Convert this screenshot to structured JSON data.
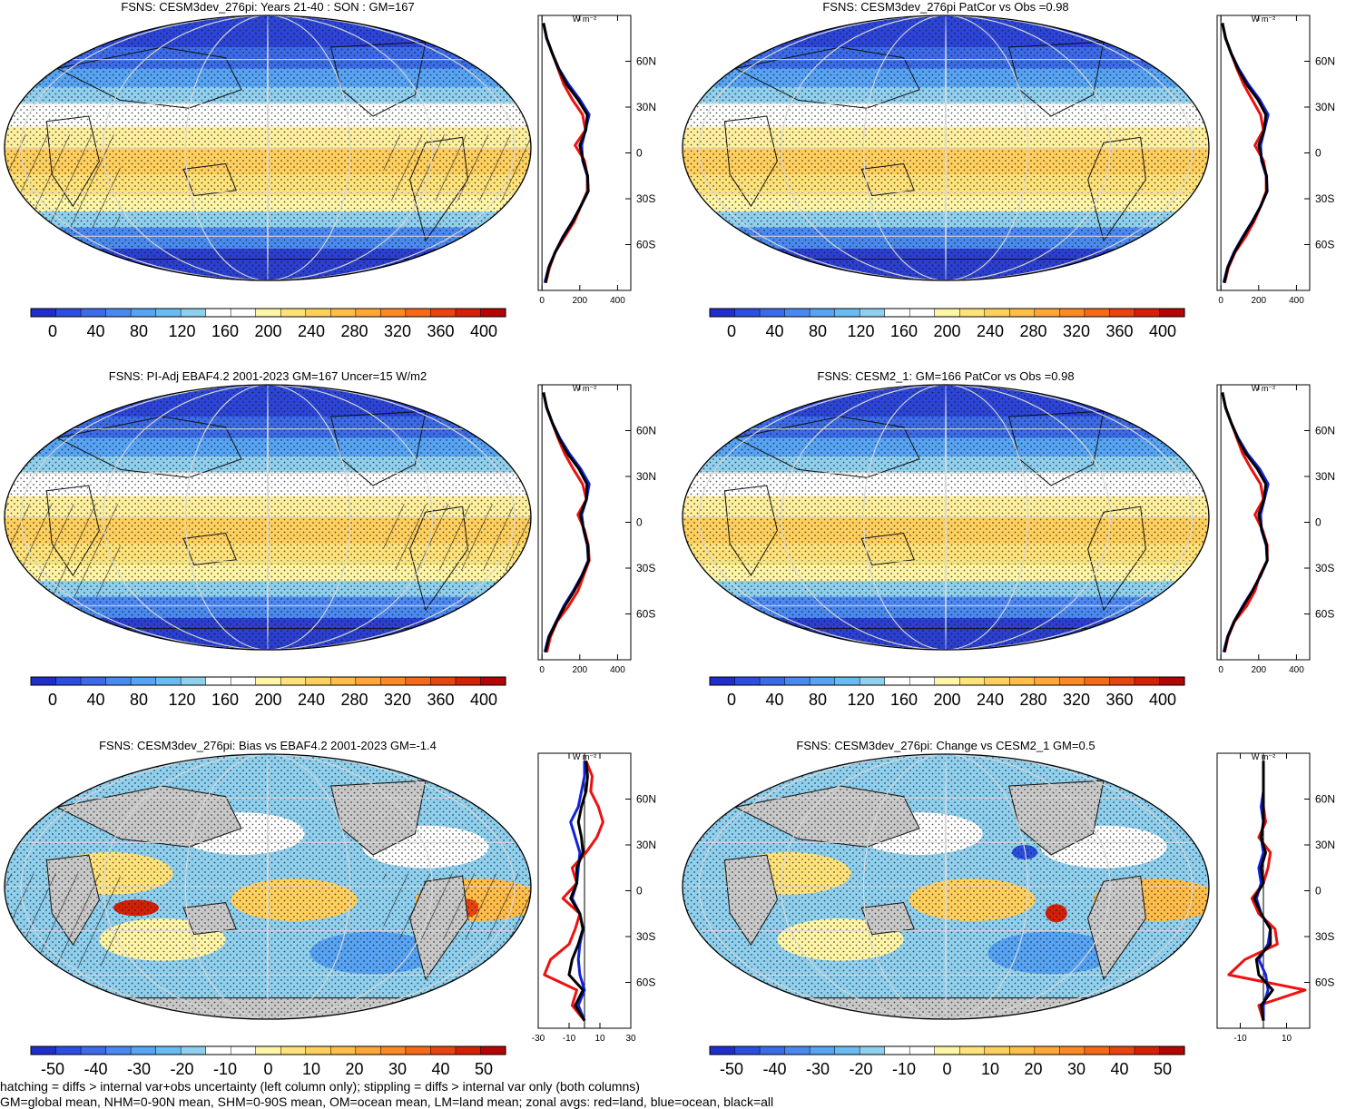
{
  "panels": [
    {
      "title": "FSNS: CESM3dev_276pi: Years 21-40 : SON : GM=167",
      "colorbar_labels": [
        "0",
        "40",
        "80",
        "120",
        "160",
        "200",
        "240",
        "280",
        "320",
        "360",
        "400"
      ],
      "colors": [
        "#1f2ecb",
        "#2b4ee0",
        "#3c6be8",
        "#4a8af0",
        "#57a4f4",
        "#69bcf2",
        "#8fd0ee",
        "#ffffff",
        "#ffffff",
        "#fff5a6",
        "#ffe37a",
        "#ffd05e",
        "#ffbd4a",
        "#ffa638",
        "#fb8a26",
        "#f46a18",
        "#e84410",
        "#d52008",
        "#b40404"
      ],
      "profile_unit": "W m⁻²",
      "profile_ticks": [
        "0",
        "200",
        "400"
      ],
      "lat_ticks": [
        "60N",
        "30N",
        "0",
        "30S",
        "60S"
      ],
      "hatched": true
    },
    {
      "title": "FSNS: CESM3dev_276pi PatCor vs Obs =0.98",
      "colorbar_labels": [
        "0",
        "40",
        "80",
        "120",
        "160",
        "200",
        "240",
        "280",
        "320",
        "360",
        "400"
      ],
      "colors": [
        "#1f2ecb",
        "#2b4ee0",
        "#3c6be8",
        "#4a8af0",
        "#57a4f4",
        "#69bcf2",
        "#8fd0ee",
        "#ffffff",
        "#ffffff",
        "#fff5a6",
        "#ffe37a",
        "#ffd05e",
        "#ffbd4a",
        "#ffa638",
        "#fb8a26",
        "#f46a18",
        "#e84410",
        "#d52008",
        "#b40404"
      ],
      "profile_unit": "W m⁻²",
      "profile_ticks": [
        "0",
        "200",
        "400"
      ],
      "lat_ticks": [
        "60N",
        "30N",
        "0",
        "30S",
        "60S"
      ],
      "hatched": false
    },
    {
      "title": "FSNS: PI-Adj EBAF4.2 2001-2023 GM=167 Uncer=15 W/m2",
      "colorbar_labels": [
        "0",
        "40",
        "80",
        "120",
        "160",
        "200",
        "240",
        "280",
        "320",
        "360",
        "400"
      ],
      "colors": [
        "#1f2ecb",
        "#2b4ee0",
        "#3c6be8",
        "#4a8af0",
        "#57a4f4",
        "#69bcf2",
        "#8fd0ee",
        "#ffffff",
        "#ffffff",
        "#fff5a6",
        "#ffe37a",
        "#ffd05e",
        "#ffbd4a",
        "#ffa638",
        "#fb8a26",
        "#f46a18",
        "#e84410",
        "#d52008",
        "#b40404"
      ],
      "profile_unit": "W m⁻²",
      "profile_ticks": [
        "0",
        "200",
        "400"
      ],
      "lat_ticks": [
        "60N",
        "30N",
        "0",
        "30S",
        "60S"
      ],
      "hatched": true
    },
    {
      "title": "FSNS: CESM2_1: GM=166 PatCor vs Obs =0.98",
      "colorbar_labels": [
        "0",
        "40",
        "80",
        "120",
        "160",
        "200",
        "240",
        "280",
        "320",
        "360",
        "400"
      ],
      "colors": [
        "#1f2ecb",
        "#2b4ee0",
        "#3c6be8",
        "#4a8af0",
        "#57a4f4",
        "#69bcf2",
        "#8fd0ee",
        "#ffffff",
        "#ffffff",
        "#fff5a6",
        "#ffe37a",
        "#ffd05e",
        "#ffbd4a",
        "#ffa638",
        "#fb8a26",
        "#f46a18",
        "#e84410",
        "#d52008",
        "#b40404"
      ],
      "profile_unit": "W m⁻²",
      "profile_ticks": [
        "0",
        "200",
        "400"
      ],
      "lat_ticks": [
        "60N",
        "30N",
        "0",
        "30S",
        "60S"
      ],
      "hatched": false
    },
    {
      "title": "FSNS: CESM3dev_276pi: Bias vs EBAF4.2 2001-2023  GM=-1.4",
      "colorbar_labels": [
        "-50",
        "-40",
        "-30",
        "-20",
        "-10",
        "0",
        "10",
        "20",
        "30",
        "40",
        "50"
      ],
      "colors": [
        "#1f2ecb",
        "#2b4ee0",
        "#3c6be8",
        "#4a8af0",
        "#57a4f4",
        "#69bcf2",
        "#8fd0ee",
        "#ffffff",
        "#ffffff",
        "#fff5a6",
        "#ffe37a",
        "#ffd05e",
        "#ffbd4a",
        "#ffa638",
        "#fb8a26",
        "#f46a18",
        "#e84410",
        "#d52008",
        "#b40404"
      ],
      "profile_unit": "W m⁻²",
      "profile_ticks": [
        "-30",
        "-10",
        "10",
        "30"
      ],
      "lat_ticks": [
        "60N",
        "30N",
        "0",
        "30S",
        "60S"
      ],
      "hatched": true
    },
    {
      "title": "FSNS: CESM3dev_276pi: Change vs CESM2_1 GM=0.5",
      "colorbar_labels": [
        "-50",
        "-40",
        "-30",
        "-20",
        "-10",
        "0",
        "10",
        "20",
        "30",
        "40",
        "50"
      ],
      "colors": [
        "#1f2ecb",
        "#2b4ee0",
        "#3c6be8",
        "#4a8af0",
        "#57a4f4",
        "#69bcf2",
        "#8fd0ee",
        "#ffffff",
        "#ffffff",
        "#fff5a6",
        "#ffe37a",
        "#ffd05e",
        "#ffbd4a",
        "#ffa638",
        "#fb8a26",
        "#f46a18",
        "#e84410",
        "#d52008",
        "#b40404"
      ],
      "profile_unit": "W m⁻²",
      "profile_ticks": [
        "-10",
        "10"
      ],
      "lat_ticks": [
        "60N",
        "30N",
        "0",
        "30S",
        "60S"
      ],
      "hatched": false
    }
  ],
  "caption": {
    "line1": "hatching = diffs > internal var+obs uncertainty (left column only); stippling = diffs > internal var only (both columns)",
    "line2": "GM=global mean, NHM=0-90N mean, SHM=0-90S mean, OM=ocean mean, LM=land mean; zonal avgs: red=land, blue=ocean, black=all"
  },
  "chart_data": [
    {
      "type": "heatmap",
      "title": "FSNS: CESM3dev_276pi: Years 21-40 : SON : GM=167",
      "colorbar_ticks": [
        0,
        40,
        80,
        120,
        160,
        200,
        240,
        280,
        320,
        360,
        400
      ],
      "zonal_profile": {
        "y_ticks": [
          "60N",
          "30N",
          "0",
          "30S",
          "60S"
        ],
        "x_ticks": [
          0,
          200,
          400
        ],
        "xlim": [
          -20,
          470
        ],
        "ylim": [
          -90,
          90
        ],
        "lat": [
          -85,
          -75,
          -65,
          -55,
          -45,
          -35,
          -25,
          -15,
          -5,
          5,
          15,
          25,
          35,
          45,
          55,
          65,
          75,
          85
        ],
        "series": [
          {
            "name": "land",
            "color": "#ee1111",
            "values": [
              20,
              40,
              70,
              120,
              170,
              205,
              240,
              240,
              225,
              175,
              230,
              215,
              160,
              115,
              85,
              55,
              25,
              8
            ]
          },
          {
            "name": "ocean",
            "color": "#1122dd",
            "values": [
              15,
              35,
              70,
              110,
              160,
              205,
              245,
              240,
              215,
              210,
              230,
              250,
              200,
              140,
              90,
              55,
              25,
              8
            ]
          },
          {
            "name": "all",
            "color": "#000000",
            "values": [
              18,
              36,
              70,
              112,
              162,
              205,
              244,
              242,
              218,
              200,
              232,
              240,
              190,
              130,
              88,
              55,
              25,
              8
            ]
          }
        ]
      }
    },
    {
      "type": "heatmap",
      "title": "FSNS: CESM3dev_276pi PatCor vs Obs =0.98",
      "colorbar_ticks": [
        0,
        40,
        80,
        120,
        160,
        200,
        240,
        280,
        320,
        360,
        400
      ],
      "zonal_profile": {
        "y_ticks": [
          "60N",
          "30N",
          "0",
          "30S",
          "60S"
        ],
        "x_ticks": [
          0,
          200,
          400
        ],
        "xlim": [
          -20,
          470
        ],
        "ylim": [
          -90,
          90
        ],
        "lat": [
          -85,
          -75,
          -65,
          -55,
          -45,
          -35,
          -25,
          -15,
          -5,
          5,
          15,
          25,
          35,
          45,
          55,
          65,
          75,
          85
        ],
        "series": [
          {
            "name": "land",
            "color": "#ee1111",
            "values": [
              20,
              40,
              75,
              130,
              175,
              210,
              240,
              240,
              225,
              180,
              225,
              210,
              165,
              120,
              85,
              55,
              25,
              8
            ]
          },
          {
            "name": "ocean",
            "color": "#1122dd",
            "values": [
              15,
              35,
              70,
              115,
              165,
              210,
              245,
              240,
              215,
              210,
              230,
              250,
              205,
              145,
              95,
              55,
              25,
              8
            ]
          },
          {
            "name": "all",
            "color": "#000000",
            "values": [
              18,
              36,
              72,
              118,
              167,
              210,
              244,
              242,
              218,
              200,
              230,
              238,
              195,
              135,
              90,
              55,
              25,
              8
            ]
          }
        ]
      }
    },
    {
      "type": "heatmap",
      "title": "FSNS: PI-Adj EBAF4.2 2001-2023 GM=167 Uncer=15 W/m2",
      "colorbar_ticks": [
        0,
        40,
        80,
        120,
        160,
        200,
        240,
        280,
        320,
        360,
        400
      ],
      "zonal_profile": {
        "y_ticks": [
          "60N",
          "30N",
          "0",
          "30S",
          "60S"
        ],
        "x_ticks": [
          0,
          200,
          400
        ],
        "xlim": [
          -20,
          470
        ],
        "ylim": [
          -90,
          90
        ],
        "lat": [
          -85,
          -75,
          -65,
          -55,
          -45,
          -35,
          -25,
          -15,
          -5,
          5,
          15,
          25,
          35,
          45,
          55,
          65,
          75,
          85
        ],
        "series": [
          {
            "name": "land",
            "color": "#ee1111",
            "values": [
              25,
              45,
              80,
              140,
              190,
              220,
              250,
              245,
              225,
              190,
              235,
              215,
              165,
              120,
              85,
              55,
              25,
              8
            ]
          },
          {
            "name": "ocean",
            "color": "#1122dd",
            "values": [
              15,
              35,
              75,
              115,
              165,
              210,
              245,
              240,
              220,
              210,
              235,
              250,
              205,
              145,
              95,
              55,
              25,
              8
            ]
          },
          {
            "name": "all",
            "color": "#000000",
            "values": [
              18,
              38,
              77,
              120,
              170,
              212,
              246,
              242,
              221,
              203,
              235,
              238,
              195,
              135,
              90,
              55,
              25,
              8
            ]
          }
        ]
      }
    },
    {
      "type": "heatmap",
      "title": "FSNS: CESM2_1: GM=166 PatCor vs Obs =0.98",
      "colorbar_ticks": [
        0,
        40,
        80,
        120,
        160,
        200,
        240,
        280,
        320,
        360,
        400
      ],
      "zonal_profile": {
        "y_ticks": [
          "60N",
          "30N",
          "0",
          "30S",
          "60S"
        ],
        "x_ticks": [
          0,
          200,
          400
        ],
        "xlim": [
          -20,
          470
        ],
        "ylim": [
          -90,
          90
        ],
        "lat": [
          -85,
          -75,
          -65,
          -55,
          -45,
          -35,
          -25,
          -15,
          -5,
          5,
          15,
          25,
          35,
          45,
          55,
          65,
          75,
          85
        ],
        "series": [
          {
            "name": "land",
            "color": "#ee1111",
            "values": [
              20,
              38,
              72,
              135,
              180,
              205,
              245,
              245,
              220,
              180,
              225,
              210,
              160,
              115,
              85,
              55,
              25,
              8
            ]
          },
          {
            "name": "ocean",
            "color": "#1122dd",
            "values": [
              15,
              35,
              70,
              115,
              165,
              210,
              245,
              240,
              215,
              210,
              230,
              250,
              205,
              140,
              92,
              55,
              25,
              8
            ]
          },
          {
            "name": "all",
            "color": "#000000",
            "values": [
              18,
              36,
              70,
              118,
              167,
              208,
              245,
              242,
              217,
              200,
              229,
              238,
              193,
              132,
              89,
              55,
              25,
              8
            ]
          }
        ]
      }
    },
    {
      "type": "heatmap",
      "title": "FSNS: CESM3dev_276pi: Bias vs EBAF4.2 2001-2023  GM=-1.4",
      "colorbar_ticks": [
        -50,
        -40,
        -30,
        -20,
        -10,
        0,
        10,
        20,
        30,
        40,
        50
      ],
      "zonal_profile": {
        "y_ticks": [
          "60N",
          "30N",
          "0",
          "30S",
          "60S"
        ],
        "x_ticks": [
          -30,
          -10,
          10,
          30
        ],
        "xlim": [
          -30,
          30
        ],
        "ylim": [
          -90,
          90
        ],
        "lat": [
          -85,
          -75,
          -65,
          -55,
          -45,
          -35,
          -25,
          -15,
          -5,
          5,
          15,
          25,
          35,
          45,
          55,
          65,
          75,
          85
        ],
        "series": [
          {
            "name": "land",
            "color": "#ee1111",
            "values": [
              0,
              -8,
              -5,
              -26,
              -22,
              -10,
              -6,
              -3,
              -14,
              -5,
              -8,
              1,
              8,
              12,
              9,
              4,
              5,
              1
            ]
          },
          {
            "name": "ocean",
            "color": "#1122dd",
            "values": [
              0,
              -4,
              0,
              -3,
              -4,
              -3,
              -1,
              -3,
              -8,
              -5,
              -4,
              -3,
              -6,
              -9,
              -4,
              -2,
              0,
              0
            ]
          },
          {
            "name": "all",
            "color": "#000000",
            "values": [
              0,
              -6,
              -1,
              -10,
              -8,
              -4,
              -1,
              -3,
              -9,
              -5,
              -5,
              -1,
              -2,
              -4,
              -2,
              1,
              2,
              1
            ]
          }
        ]
      }
    },
    {
      "type": "heatmap",
      "title": "FSNS: CESM3dev_276pi: Change vs CESM2_1 GM=0.5",
      "colorbar_ticks": [
        -50,
        -40,
        -30,
        -20,
        -10,
        0,
        10,
        20,
        30,
        40,
        50
      ],
      "zonal_profile": {
        "y_ticks": [
          "60N",
          "30N",
          "0",
          "30S",
          "60S"
        ],
        "x_ticks": [
          -10,
          10
        ],
        "xlim": [
          -20,
          20
        ],
        "ylim": [
          -90,
          90
        ],
        "lat": [
          -85,
          -75,
          -65,
          -55,
          -45,
          -35,
          -25,
          -15,
          -5,
          5,
          15,
          25,
          35,
          45,
          55,
          65,
          75,
          85
        ],
        "series": [
          {
            "name": "land",
            "color": "#ee1111",
            "values": [
              0,
              -2,
              18,
              -15,
              -8,
              6,
              5,
              -2,
              -5,
              0,
              2,
              3,
              -2,
              1,
              0,
              0,
              0,
              0
            ]
          },
          {
            "name": "ocean",
            "color": "#1122dd",
            "values": [
              0,
              0,
              2,
              1,
              -2,
              2,
              3,
              -1,
              -3,
              -1,
              -2,
              0,
              -1,
              0,
              -1,
              0,
              0,
              0
            ]
          },
          {
            "name": "all",
            "color": "#000000",
            "values": [
              0,
              -1,
              4,
              -2,
              -3,
              3,
              3,
              -1,
              -4,
              0,
              -1,
              1,
              -1,
              0,
              0,
              0,
              0,
              0
            ]
          }
        ]
      }
    }
  ]
}
